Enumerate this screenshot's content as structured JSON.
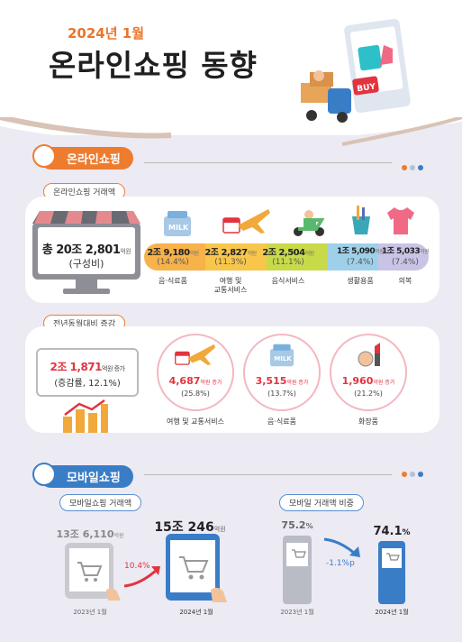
{
  "header": {
    "kicker": "2024년 1월",
    "title": "온라인쇼핑 동향"
  },
  "online": {
    "section": "온라인쇼핑",
    "tx_label": "온라인쇼핑 거래액",
    "total": {
      "prefix": "총 ",
      "amount": "20조 2,801",
      "unit": "억원",
      "sub": "(구성비)"
    },
    "categories": [
      {
        "name": "음·식료품",
        "amount": "2조 9,180",
        "unit": "억원",
        "share": "(14.4%)",
        "color": "#f7b24a",
        "icon": "milk-icon"
      },
      {
        "name": "여행 및\n교통서비스",
        "amount": "2조 2,827",
        "unit": "억원",
        "share": "(11.3%)",
        "color": "#f7c64a",
        "icon": "airplane-icon"
      },
      {
        "name": "음식서비스",
        "amount": "2조 2,504",
        "unit": "억원",
        "share": "(11.1%)",
        "color": "#c8d94a",
        "icon": "scooter-icon"
      },
      {
        "name": "생활용품",
        "amount": "1조 5,090",
        "unit": "억원",
        "share": "(7.4%)",
        "color": "#9ed0e9",
        "icon": "cup-icon"
      },
      {
        "name": "의복",
        "amount": "1조 5,033",
        "unit": "억원",
        "share": "(7.4%)",
        "color": "#c9c3e6",
        "icon": "shirt-icon"
      }
    ],
    "yoy_label": "전년동월대비 증감",
    "yoy": {
      "amount": "2조 1,871",
      "unit": "억원 증가",
      "sub": "(증감률, 12.1%)"
    },
    "yoy_items": [
      {
        "name": "여행 및 교통서비스",
        "amount": "4,687",
        "unit": "억원 증가",
        "rate": "(25.8%)",
        "icon": "airplane-icon"
      },
      {
        "name": "음·식료품",
        "amount": "3,515",
        "unit": "억원 증가",
        "rate": "(13.7%)",
        "icon": "milk-icon"
      },
      {
        "name": "화장품",
        "amount": "1,960",
        "unit": "억원 증가",
        "rate": "(21.2%)",
        "icon": "lipstick-icon"
      }
    ]
  },
  "mobile": {
    "section": "모바일쇼핑",
    "tx_label": "모바일쇼핑 거래액",
    "share_label": "모바일 거래액 비중",
    "tx": {
      "prev": {
        "amount": "13조 6,110",
        "unit": "억원",
        "period": "2023년 1월"
      },
      "curr": {
        "amount": "15조 246",
        "unit": "억원",
        "period": "2024년 1월"
      },
      "growth": "10.4%"
    },
    "share": {
      "prev": {
        "value": "75.2",
        "unit": "%",
        "period": "2023년 1월"
      },
      "curr": {
        "value": "74.1",
        "unit": "%",
        "period": "2024년 1월"
      },
      "change": "-1.1%p"
    }
  },
  "colors": {
    "accent_orange": "#ee7c2f",
    "accent_blue": "#3a7dc7",
    "increase_red": "#e2343f"
  },
  "chart_data": {
    "type": "table",
    "series": [
      {
        "name": "온라인쇼핑 거래액",
        "categories": [
          "음·식료품",
          "여행 및 교통서비스",
          "음식서비스",
          "생활용품",
          "의복"
        ],
        "values": [
          "2조 9,180",
          "2조 2,827",
          "2조 2,504",
          "1조 5,090",
          "1조 5,033"
        ],
        "shares": [
          14.4,
          11.3,
          11.1,
          7.4,
          7.4
        ]
      },
      {
        "name": "전년동월대비 증감",
        "categories": [
          "여행 및 교통서비스",
          "음·식료품",
          "화장품"
        ],
        "values": [
          "4,687",
          "3,515",
          "1,960"
        ],
        "rates": [
          25.8,
          13.7,
          21.2
        ]
      },
      {
        "name": "모바일 거래액 비중",
        "categories": [
          "2023년 1월",
          "2024년 1월"
        ],
        "values": [
          75.2,
          74.1
        ]
      }
    ]
  }
}
